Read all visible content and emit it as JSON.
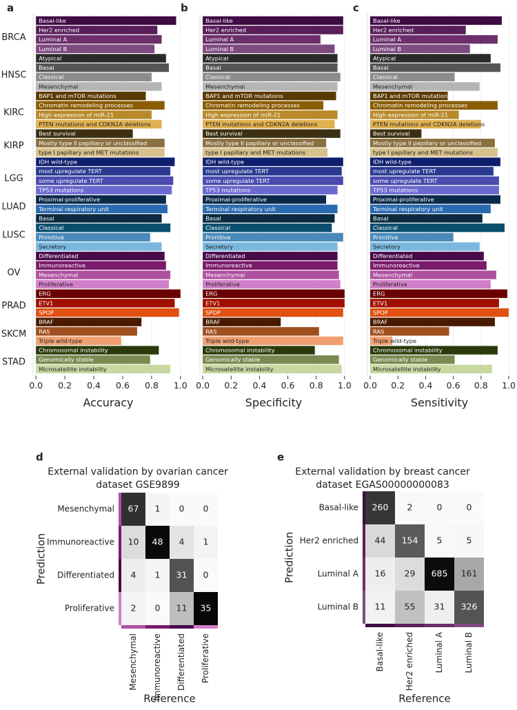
{
  "chart_data": [
    {
      "type": "bar",
      "orientation": "horizontal",
      "groups": [
        {
          "label": "BRCA",
          "categories": [
            "Basal-like",
            "Her2 enriched",
            "Luminal A",
            "Luminal B"
          ]
        },
        {
          "label": "HNSC",
          "categories": [
            "Atypical",
            "Basal",
            "Classical",
            "Mesenchymal"
          ]
        },
        {
          "label": "KIRC",
          "categories": [
            "BAP1 and mTOR mutations",
            "Chromatin remodeling processes",
            "High expression of miR-21",
            "PTEN mutations and CDKN2A deletions"
          ]
        },
        {
          "label": "KIRP",
          "categories": [
            "Best survival",
            "Mostly type II papillary or unclassified",
            "type I papillary and MET mutations"
          ]
        },
        {
          "label": "LGG",
          "categories": [
            "IDH wild-type",
            "most upregulate TERT",
            "some upregulate TERT",
            "TP53 mutations"
          ]
        },
        {
          "label": "LUAD",
          "categories": [
            "Proximal-proliferative",
            "Terminal respiratory unit"
          ]
        },
        {
          "label": "LUSC",
          "categories": [
            "Basal",
            "Classical",
            "Primitive",
            "Secretory"
          ]
        },
        {
          "label": "OV",
          "categories": [
            "Differentiated",
            "Immunoreactive",
            "Mesenchymal",
            "Proliferative"
          ]
        },
        {
          "label": "PRAD",
          "categories": [
            "ERG",
            "ETV1",
            "SPOP"
          ]
        },
        {
          "label": "SKCM",
          "categories": [
            "BRAF",
            "RAS",
            "Triple wild-type"
          ]
        },
        {
          "label": "STAD",
          "categories": [
            "Chromosomal instability",
            "Genomically stable",
            "Microsatellite instability"
          ]
        }
      ],
      "colors": [
        "#3f0b45",
        "#5a1e5a",
        "#6b2f6b",
        "#7f4a80",
        "#2b2b2b",
        "#555555",
        "#8c8c8c",
        "#b5b5b5",
        "#5a3a00",
        "#8a5d00",
        "#b88a2a",
        "#e0b050",
        "#3d2f12",
        "#8a7040",
        "#d8c08a",
        "#0f1f6e",
        "#2a3a90",
        "#4a4ab0",
        "#6a6ad0",
        "#0b2a4a",
        "#2a6ab0",
        "#0a2a3f",
        "#0b4f6e",
        "#4a8ab8",
        "#7ab8e0",
        "#4a0a4a",
        "#7a1a6a",
        "#b050a0",
        "#d080c8",
        "#6a0000",
        "#a01000",
        "#e05010",
        "#4a1a00",
        "#a05020",
        "#f0a070",
        "#2a3a0a",
        "#7a8a50",
        "#c8d8a0"
      ],
      "xlim": [
        -0.02,
        1.02
      ],
      "xticks": [
        {
          "value": 0,
          "label": "0.0"
        },
        0.2,
        0.4,
        0.6,
        0.8,
        {
          "value": 1,
          "label": "1.0"
        }
      ],
      "grid": true,
      "series": [
        {
          "panel": "a",
          "name": "Accuracy",
          "values": [
            0.97,
            0.84,
            0.87,
            0.82,
            0.9,
            0.92,
            0.8,
            0.87,
            0.76,
            0.89,
            0.8,
            0.87,
            0.67,
            0.89,
            0.89,
            0.96,
            0.93,
            0.95,
            0.94,
            0.9,
            0.91,
            0.87,
            0.93,
            0.79,
            0.87,
            0.89,
            0.9,
            0.93,
            0.92,
            1.0,
            0.96,
            0.99,
            0.73,
            0.7,
            0.59,
            0.85,
            0.79,
            0.93
          ]
        },
        {
          "panel": "b",
          "name": "Specificity",
          "values": [
            0.99,
            0.99,
            0.83,
            0.93,
            0.95,
            0.95,
            0.97,
            0.95,
            0.94,
            0.85,
            0.95,
            0.93,
            0.97,
            0.87,
            0.88,
            0.99,
            0.98,
            0.99,
            0.95,
            0.87,
            0.95,
            0.93,
            0.91,
            0.99,
            0.95,
            0.95,
            0.95,
            0.96,
            0.97,
            1.0,
            1.0,
            0.99,
            0.55,
            0.82,
            0.99,
            0.79,
            0.96,
            0.98
          ]
        },
        {
          "panel": "c",
          "name": "Sensitivity",
          "values": [
            0.95,
            0.69,
            0.92,
            0.72,
            0.87,
            0.94,
            0.61,
            0.79,
            0.56,
            0.92,
            0.64,
            0.8,
            0.37,
            0.9,
            0.92,
            0.94,
            0.89,
            0.93,
            0.93,
            0.94,
            0.87,
            0.81,
            0.97,
            0.6,
            0.79,
            0.82,
            0.84,
            0.91,
            0.87,
            0.99,
            0.93,
            1.0,
            0.9,
            0.57,
            0.16,
            0.92,
            0.61,
            0.88
          ]
        }
      ]
    },
    {
      "type": "heatmap",
      "panel": "d",
      "title": [
        "External validation by ovarian cancer",
        "dataset GSE9899"
      ],
      "xlabel": "Reference",
      "ylabel": "Prediction",
      "x": [
        "Mesenchymal",
        "Immunoreactive",
        "Differentiated",
        "Proliferative"
      ],
      "y": [
        "Mesenchymal",
        "Immunoreactive",
        "Differentiated",
        "Proliferative"
      ],
      "values": [
        [
          67,
          1,
          0,
          0
        ],
        [
          10,
          48,
          4,
          1
        ],
        [
          4,
          1,
          31,
          0
        ],
        [
          2,
          0,
          11,
          35
        ]
      ],
      "colors": [
        "#b050a0",
        "#7a1a6a",
        "#4a0a4a",
        "#d080c8"
      ],
      "colormap": "Greys",
      "normalize": "column"
    },
    {
      "type": "heatmap",
      "panel": "e",
      "title": [
        "External validation by breast cancer",
        "dataset EGAS00000000083"
      ],
      "xlabel": "Reference",
      "ylabel": "Prediction",
      "x": [
        "Basal-like",
        "Her2 enriched",
        "Luminal A",
        "Luminal B"
      ],
      "y": [
        "Basal-like",
        "Her2 enriched",
        "Luminal A",
        "Luminal B"
      ],
      "values": [
        [
          260,
          2,
          0,
          0
        ],
        [
          44,
          154,
          5,
          5
        ],
        [
          16,
          29,
          685,
          161
        ],
        [
          11,
          55,
          31,
          326
        ]
      ],
      "colors": [
        "#3f0b45",
        "#5a1e5a",
        "#6b2f6b",
        "#7f4a80"
      ],
      "colormap": "Greys",
      "normalize": "column"
    }
  ]
}
